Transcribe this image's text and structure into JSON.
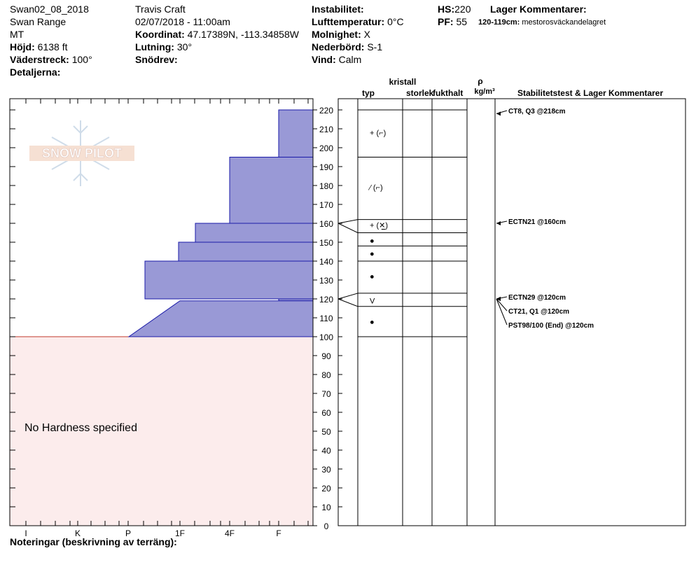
{
  "header": {
    "pit_name": "Swan02_08_2018",
    "range": "Swan Range",
    "state": "MT",
    "elevation_label": "Höjd:",
    "elevation": "6138 ft",
    "aspect_label": "Väderstreck:",
    "aspect": "100°",
    "details_label": "Detaljerna:",
    "observer": "Travis  Craft",
    "datetime": "02/07/2018 - 11:00am",
    "coord_label": "Koordinat:",
    "coords": "47.17389N, -113.34858W",
    "slope_label": "Lutning:",
    "slope": "30°",
    "drift_label": "Snödrev:",
    "drift": "",
    "instability_label": "Instabilitet:",
    "instability": "",
    "airtemp_label": "Lufttemperatur:",
    "airtemp": "0°C",
    "sky_label": "Molnighet:",
    "sky": "X",
    "precip_label": "Nederbörd:",
    "precip": "S-1",
    "wind_label": "Vind:",
    "wind": "Calm",
    "hs_label": "HS:",
    "hs": "220",
    "pf_label": "PF:",
    "pf": "55",
    "layer_comments_label": "Lager Kommentarer:",
    "layer_comment_range": "120-119cm:",
    "layer_comment_text": "mestorosväckandelagret"
  },
  "columns": {
    "kristall": "kristall",
    "typ": "typ",
    "storlek": "storlek",
    "fukthalt": "fukthalt",
    "rho": "ρ",
    "density_unit": "kg/m³",
    "stability": "Stabilitetstest & Lager Kommentarer"
  },
  "no_hardness": "No Hardness specified",
  "notes_label": "Noteringar (beskrivning av terräng):",
  "logo_text": "SNOW PILOT",
  "colors": {
    "hardness_fill": "#9999d6",
    "hardness_stroke": "#1a1aa8",
    "ground_fill": "#fcecec",
    "ground_stroke": "#c0392b"
  },
  "chart_data": {
    "type": "snow-profile",
    "y_axis": {
      "min": 0,
      "max": 220,
      "step": 10,
      "unit": "cm"
    },
    "x_axis": {
      "categories": [
        "I",
        "K",
        "P",
        "1F",
        "4F",
        "F"
      ]
    },
    "ground_top_cm": 100,
    "hardness_profile": [
      {
        "top": 220,
        "bottom": 195,
        "hardness": "F+"
      },
      {
        "top": 195,
        "bottom": 160,
        "hardness": "4F"
      },
      {
        "top": 160,
        "bottom": 150,
        "hardness": "1F+"
      },
      {
        "top": 150,
        "bottom": 140,
        "hardness": "1F"
      },
      {
        "top": 140,
        "bottom": 120,
        "hardness": "P+"
      },
      {
        "top": 120,
        "bottom": 119,
        "hardness": "F"
      },
      {
        "top": 119,
        "bottom": 100,
        "hardness": "1F-P-"
      }
    ],
    "layer_boundaries_cm": [
      220,
      195,
      162,
      155,
      148,
      140,
      123,
      116,
      100
    ],
    "layer_symbols": [
      {
        "cm": 208,
        "symbol": "+ (⌐)"
      },
      {
        "cm": 179,
        "symbol": "⁄ (⌐)"
      },
      {
        "cm": 159,
        "symbol": "+ (✕̲)"
      },
      {
        "cm": 151,
        "symbol": "●"
      },
      {
        "cm": 144,
        "symbol": "●"
      },
      {
        "cm": 132,
        "symbol": "●"
      },
      {
        "cm": 119,
        "symbol": "V"
      },
      {
        "cm": 108,
        "symbol": "●"
      }
    ],
    "stability_tests": [
      {
        "cm": 218,
        "label": "CT8, Q3 @218cm"
      },
      {
        "cm": 160,
        "label": "ECTN21 @160cm"
      },
      {
        "cm": 120,
        "label": "ECTN29 @120cm"
      },
      {
        "cm": 120,
        "label": "CT21, Q1 @120cm"
      },
      {
        "cm": 120,
        "label": "PST98/100 (End) @120cm"
      }
    ]
  }
}
